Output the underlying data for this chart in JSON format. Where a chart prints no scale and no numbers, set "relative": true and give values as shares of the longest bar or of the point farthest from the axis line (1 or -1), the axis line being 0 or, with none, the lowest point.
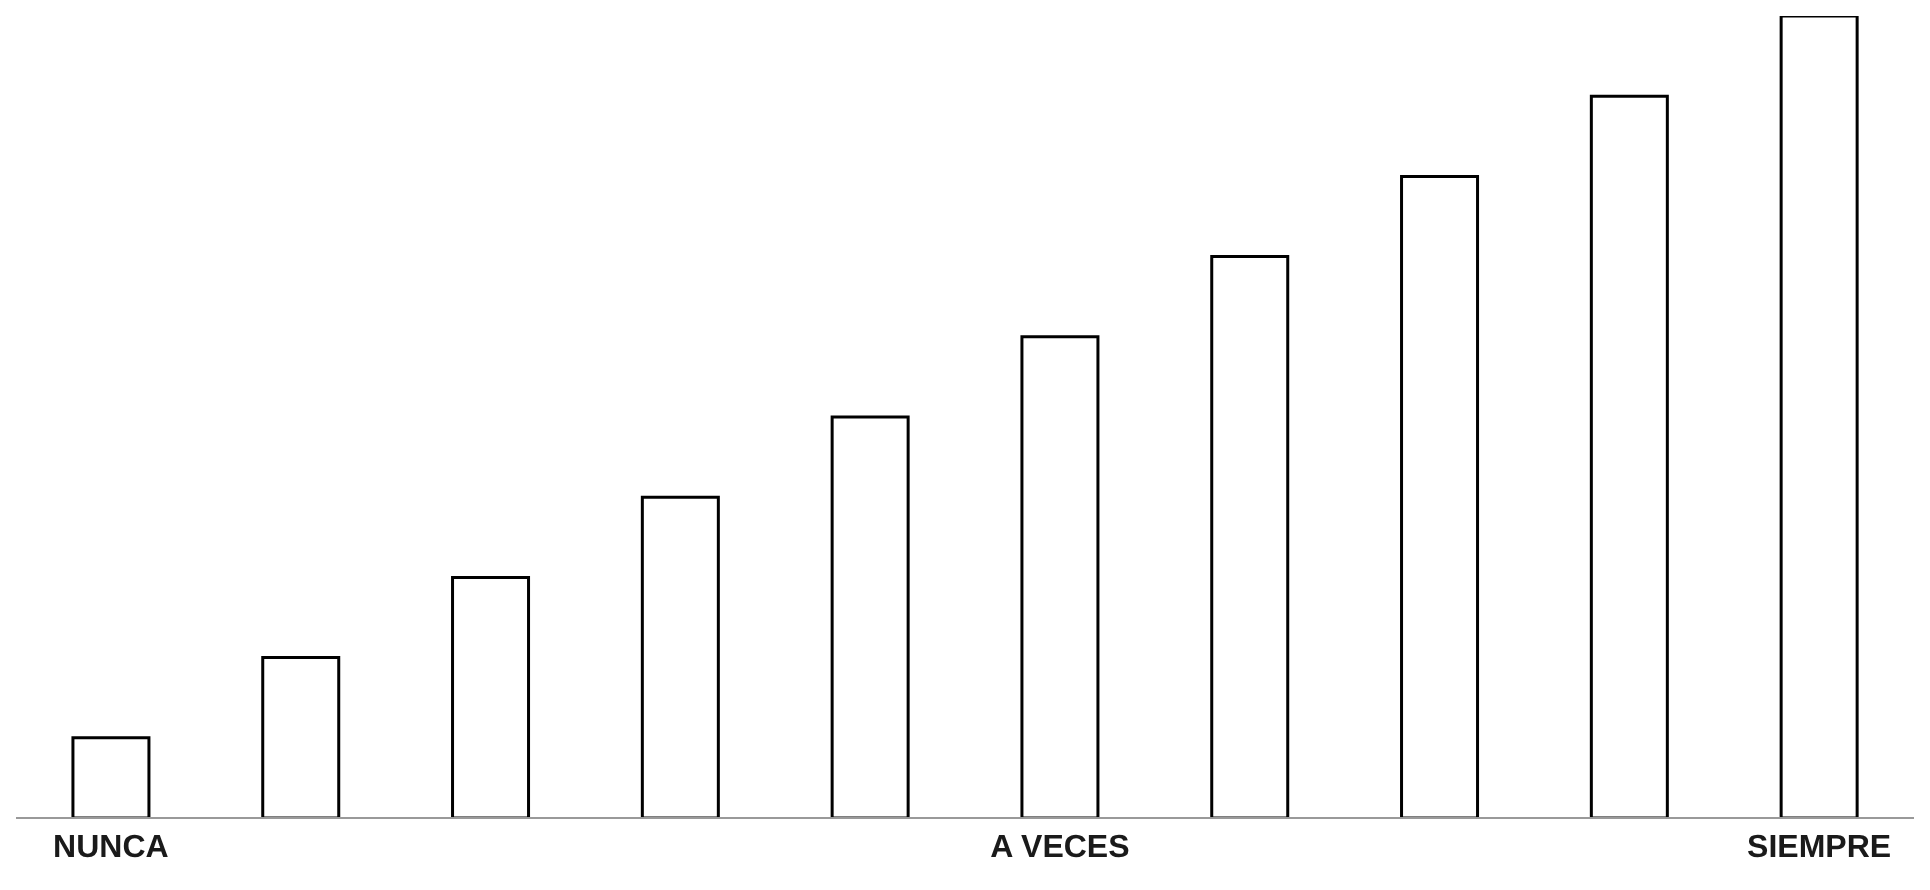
{
  "chart_data": {
    "type": "bar",
    "relative": true,
    "categories": [
      "NUNCA",
      null,
      null,
      null,
      null,
      "A VECES",
      null,
      null,
      null,
      "SIEMPRE"
    ],
    "values": [
      0.1,
      0.2,
      0.3,
      0.4,
      0.5,
      0.6,
      0.7,
      0.8,
      0.9,
      1
    ],
    "color": "#ffffff",
    "grid": false,
    "legend": false
  }
}
